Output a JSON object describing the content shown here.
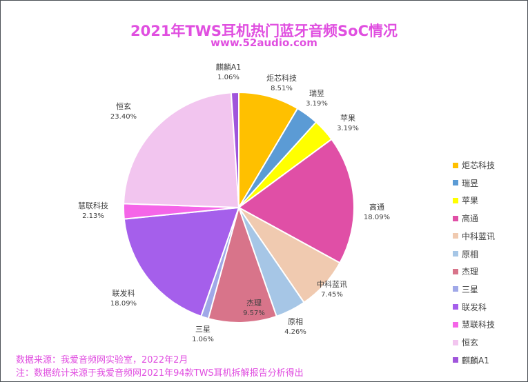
{
  "chart_data": {
    "type": "pie",
    "title": "2021年TWS耳机热门蓝牙音频SoC情况",
    "subtitle": "www.52audio.com",
    "legend_position": "right",
    "start_angle": "top, clockwise",
    "slices": [
      {
        "name": "炬芯科技",
        "value": 8.51,
        "label": "8.51%",
        "color": "#FFC000"
      },
      {
        "name": "瑞昱",
        "value": 3.19,
        "label": "3.19%",
        "color": "#5B9BD5"
      },
      {
        "name": "苹果",
        "value": 3.19,
        "label": "3.19%",
        "color": "#FFFF00"
      },
      {
        "name": "高通",
        "value": 18.09,
        "label": "18.09%",
        "color": "#E04FA6"
      },
      {
        "name": "中科蓝讯",
        "value": 7.45,
        "label": "7.45%",
        "color": "#F0CAB0"
      },
      {
        "name": "原相",
        "value": 4.26,
        "label": "4.26%",
        "color": "#A6C6E6"
      },
      {
        "name": "杰理",
        "value": 9.57,
        "label": "9.57%",
        "color": "#D8748A"
      },
      {
        "name": "三星",
        "value": 1.06,
        "label": "1.06%",
        "color": "#A0A8E8"
      },
      {
        "name": "联发科",
        "value": 18.09,
        "label": "18.09%",
        "color": "#A55FEB"
      },
      {
        "name": "慧联科技",
        "value": 2.13,
        "label": "2.13%",
        "color": "#F565E8"
      },
      {
        "name": "恒玄",
        "value": 23.4,
        "label": "23.40%",
        "color": "#F2C5EF"
      },
      {
        "name": "麒麟A1",
        "value": 1.06,
        "label": "1.06%",
        "color": "#A055DB"
      }
    ]
  },
  "notes": [
    "数据来源：我爱音频网实验室，2022年2月",
    "注：数据统计来源于我爱音频网2021年94款TWS耳机拆解报告分析得出"
  ]
}
